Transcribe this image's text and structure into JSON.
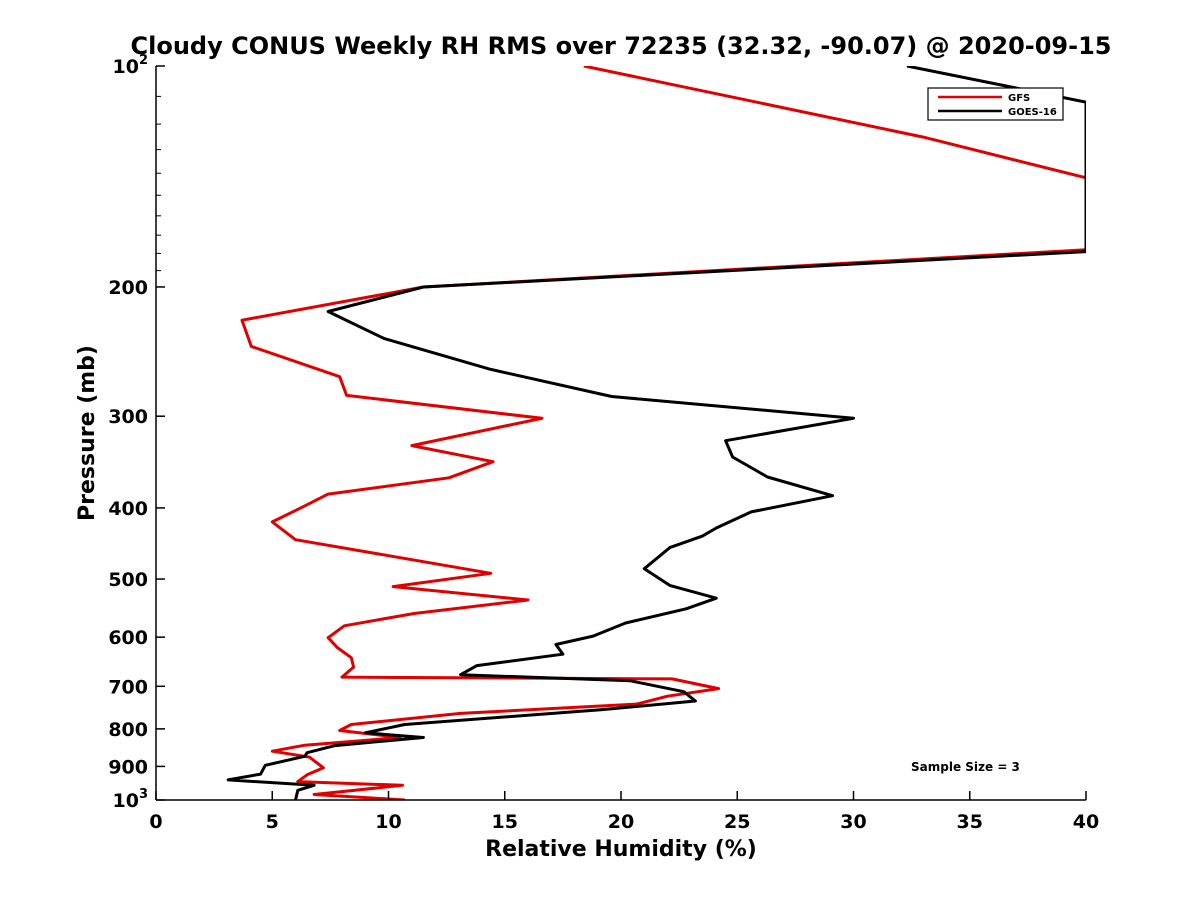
{
  "chart_data": {
    "type": "line",
    "title": "Cloudy CONUS Weekly RH RMS over 72235 (32.32, -90.07) @ 2020-09-15",
    "xlabel": "Relative Humidity (%)",
    "ylabel": "Pressure (mb)",
    "xlim": [
      0,
      40
    ],
    "ylim": [
      100,
      1000
    ],
    "yscale": "log",
    "y_reversed": true,
    "x_ticks": [
      0,
      5,
      10,
      15,
      20,
      25,
      30,
      35,
      40
    ],
    "x_tick_labels": [
      "0",
      "5",
      "10",
      "15",
      "20",
      "25",
      "30",
      "35",
      "40"
    ],
    "y_ticks": [
      100,
      200,
      300,
      400,
      500,
      600,
      700,
      800,
      900,
      1000
    ],
    "y_tick_labels": [
      {
        "base": "10",
        "sup": "2"
      },
      {
        "base": "200",
        "sup": ""
      },
      {
        "base": "300",
        "sup": ""
      },
      {
        "base": "400",
        "sup": ""
      },
      {
        "base": "500",
        "sup": ""
      },
      {
        "base": "600",
        "sup": ""
      },
      {
        "base": "700",
        "sup": ""
      },
      {
        "base": "800",
        "sup": ""
      },
      {
        "base": "900",
        "sup": ""
      },
      {
        "base": "10",
        "sup": "3"
      }
    ],
    "legend_position": "top-right",
    "annotation": "Sample Size = 3",
    "series": [
      {
        "name": "GFS",
        "color": "#e00000",
        "points": [
          [
            18.4,
            100
          ],
          [
            33.0,
            125
          ],
          [
            40.0,
            142
          ],
          [
            40.0,
            178
          ],
          [
            11.5,
            200
          ],
          [
            3.7,
            222
          ],
          [
            4.1,
            241
          ],
          [
            7.9,
            265
          ],
          [
            8.2,
            281
          ],
          [
            16.6,
            302
          ],
          [
            11.0,
            329
          ],
          [
            14.5,
            346
          ],
          [
            12.6,
            364
          ],
          [
            7.4,
            383
          ],
          [
            6.3,
            399
          ],
          [
            5.0,
            418
          ],
          [
            6.0,
            442
          ],
          [
            14.4,
            491
          ],
          [
            10.2,
            512
          ],
          [
            16.0,
            534
          ],
          [
            11.1,
            557
          ],
          [
            8.1,
            579
          ],
          [
            7.4,
            601
          ],
          [
            7.8,
            620
          ],
          [
            8.4,
            640
          ],
          [
            8.5,
            659
          ],
          [
            8.0,
            680
          ],
          [
            22.2,
            684
          ],
          [
            24.2,
            705
          ],
          [
            22.0,
            722
          ],
          [
            20.7,
            740
          ],
          [
            13.1,
            762
          ],
          [
            8.4,
            789
          ],
          [
            7.9,
            804
          ],
          [
            10.5,
            822
          ],
          [
            6.4,
            842
          ],
          [
            5.0,
            858
          ],
          [
            6.6,
            874
          ],
          [
            7.2,
            904
          ],
          [
            6.5,
            924
          ],
          [
            6.1,
            944
          ],
          [
            10.6,
            955
          ],
          [
            6.8,
            983
          ],
          [
            10.7,
            1000
          ]
        ]
      },
      {
        "name": "GOES-16",
        "color": "#000000",
        "points": [
          [
            32.3,
            100
          ],
          [
            40.0,
            112
          ],
          [
            40.0,
            179
          ],
          [
            11.5,
            200
          ],
          [
            7.4,
            216
          ],
          [
            9.8,
            235
          ],
          [
            14.4,
            259
          ],
          [
            19.6,
            282
          ],
          [
            30.0,
            302
          ],
          [
            24.5,
            324
          ],
          [
            24.8,
            341
          ],
          [
            26.3,
            363
          ],
          [
            29.1,
            385
          ],
          [
            25.6,
            405
          ],
          [
            24.1,
            426
          ],
          [
            23.5,
            437
          ],
          [
            22.1,
            453
          ],
          [
            21.0,
            484
          ],
          [
            22.1,
            510
          ],
          [
            24.1,
            531
          ],
          [
            22.8,
            549
          ],
          [
            20.2,
            574
          ],
          [
            18.8,
            598
          ],
          [
            17.2,
            614
          ],
          [
            17.5,
            633
          ],
          [
            13.8,
            656
          ],
          [
            13.1,
            675
          ],
          [
            20.4,
            688
          ],
          [
            22.7,
            712
          ],
          [
            23.2,
            733
          ],
          [
            19.2,
            753
          ],
          [
            10.7,
            789
          ],
          [
            9.0,
            810
          ],
          [
            11.5,
            822
          ],
          [
            7.7,
            843
          ],
          [
            6.5,
            862
          ],
          [
            6.4,
            872
          ],
          [
            4.7,
            897
          ],
          [
            4.5,
            922
          ],
          [
            3.1,
            939
          ],
          [
            6.8,
            955
          ],
          [
            6.1,
            970
          ],
          [
            6.0,
            1000
          ]
        ]
      }
    ]
  }
}
